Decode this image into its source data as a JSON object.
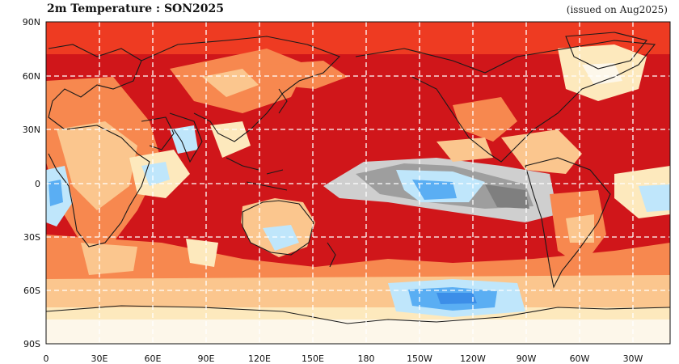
{
  "title": "2m Temperature : SON2025",
  "issued": "(issued on Aug2025)",
  "lat_labels": [
    "90N",
    "60N",
    "30N",
    "0",
    "30S",
    "60S",
    "90S"
  ],
  "lon_labels": [
    "0",
    "30E",
    "60E",
    "90E",
    "120E",
    "150E",
    "180",
    "150W",
    "120W",
    "90W",
    "60W",
    "30W"
  ],
  "colors": {
    "dark_red": "#d0161a",
    "red": "#ee3b22",
    "orange": "#f7884f",
    "light_orange": "#fbc68e",
    "pale": "#fde9bd",
    "near_white": "#fdf7ea",
    "light_blue": "#bfe6fb",
    "blue": "#5aaef3",
    "gray": "#9e9e9e",
    "light_gray": "#cfcfcf",
    "coast": "#1a1a1a",
    "grid": "#ffffff"
  }
}
